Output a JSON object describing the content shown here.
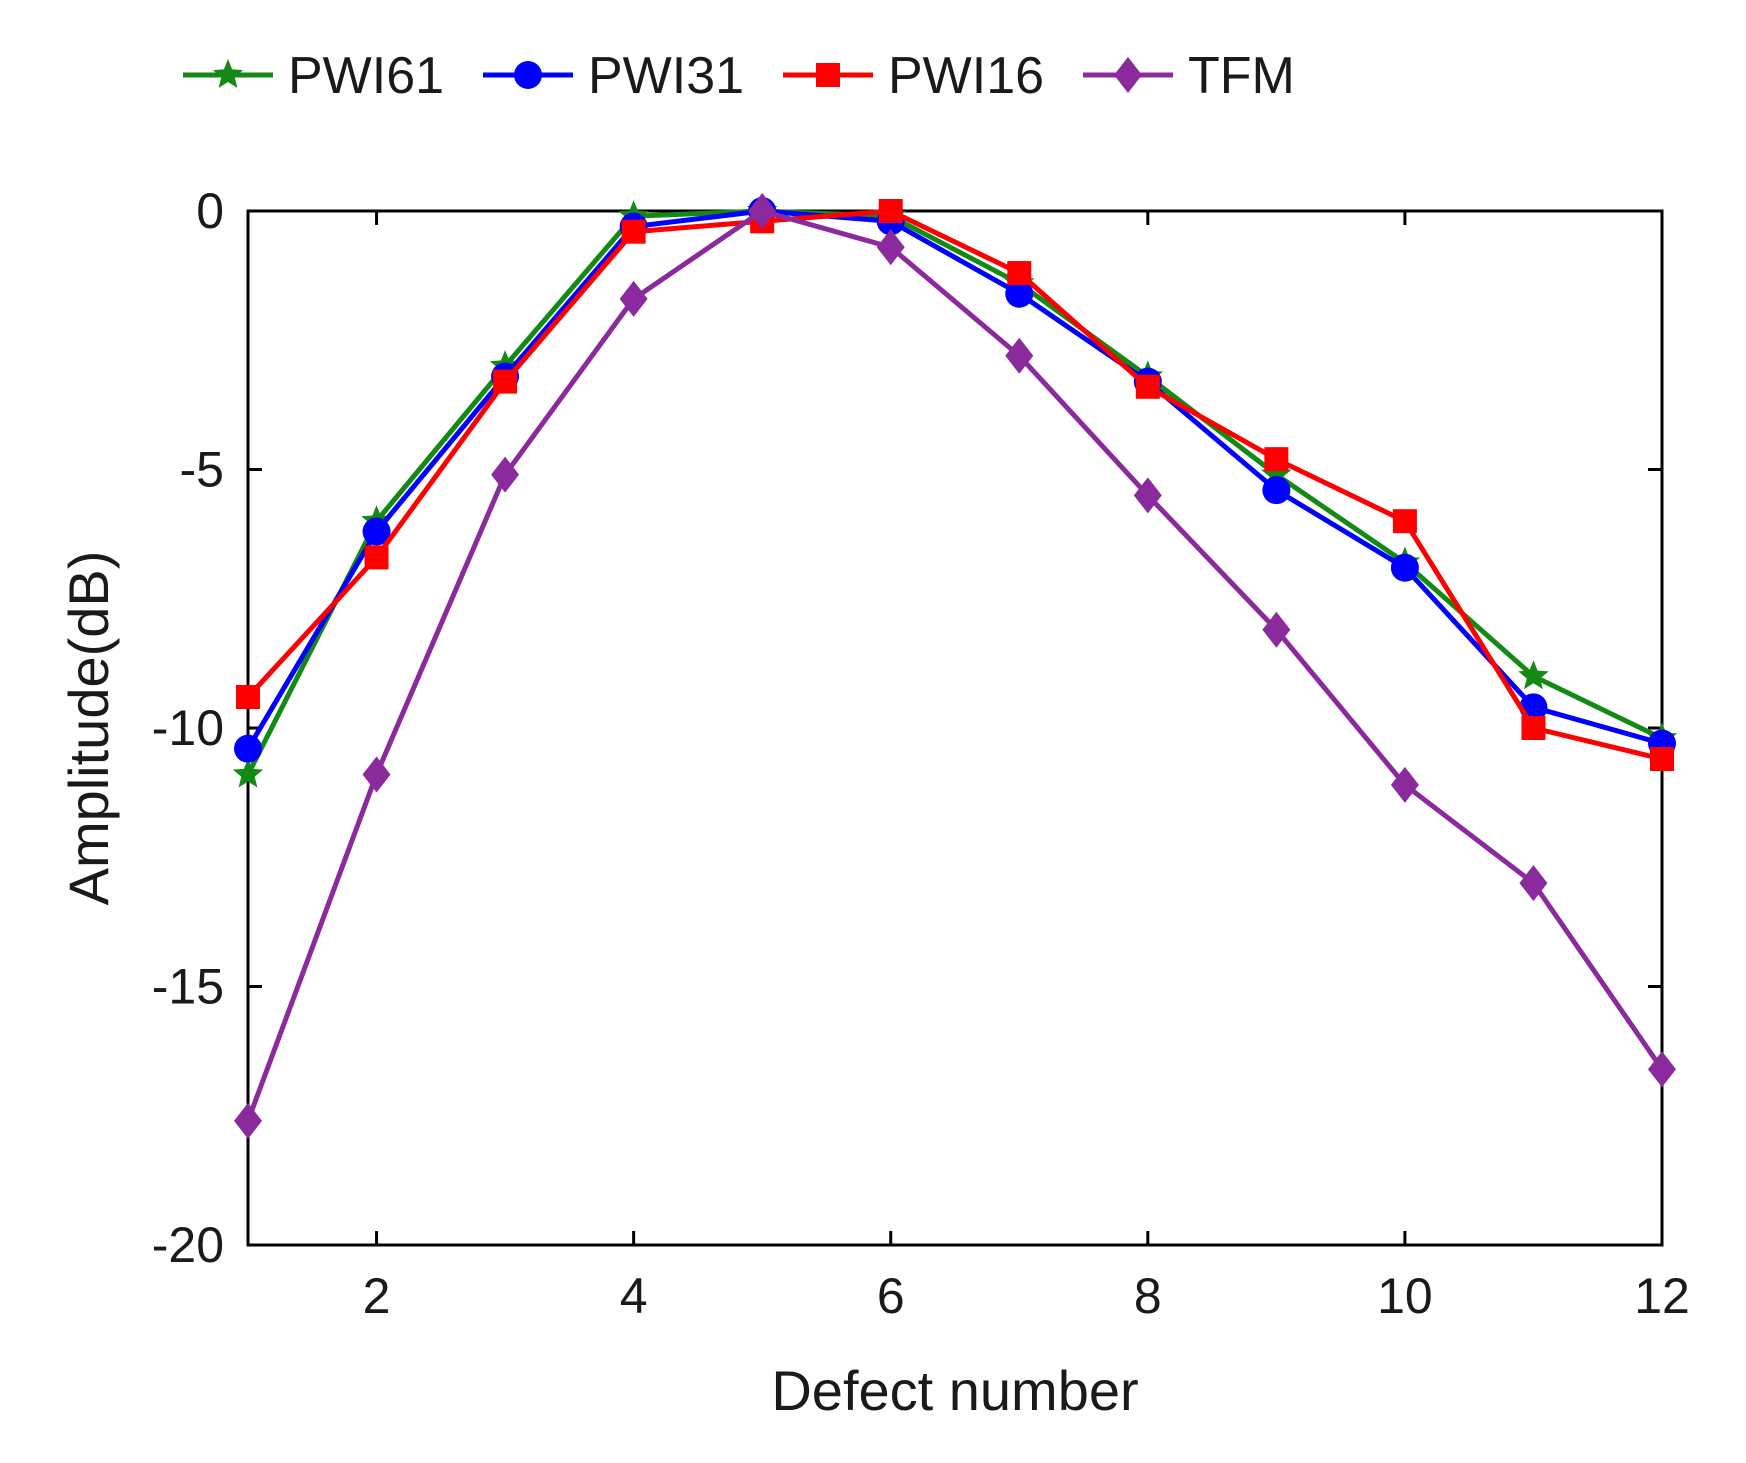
{
  "chart_data": {
    "type": "line",
    "title": "",
    "xlabel": "Defect number",
    "ylabel": "Amplitude(dB)",
    "xlim": [
      1,
      12
    ],
    "ylim": [
      -20,
      0
    ],
    "xticks": [
      2,
      4,
      6,
      8,
      10,
      12
    ],
    "yticks": [
      0,
      -5,
      -10,
      -15,
      -20
    ],
    "grid": false,
    "legend_position": "top, horizontal, above plot",
    "x": [
      1,
      2,
      3,
      4,
      5,
      6,
      7,
      8,
      9,
      10,
      11,
      12
    ],
    "series": [
      {
        "name": "PWI61",
        "color": "#138a13",
        "marker": "star",
        "values": [
          -10.9,
          -6.0,
          -3.0,
          -0.1,
          0.0,
          -0.1,
          -1.4,
          -3.2,
          -5.1,
          -6.8,
          -9.0,
          -10.2
        ]
      },
      {
        "name": "PWI31",
        "color": "#0000ff",
        "marker": "circle",
        "values": [
          -10.4,
          -6.2,
          -3.2,
          -0.3,
          0.0,
          -0.2,
          -1.6,
          -3.3,
          -5.4,
          -6.9,
          -9.6,
          -10.3
        ]
      },
      {
        "name": "PWI16",
        "color": "#ff0000",
        "marker": "square",
        "values": [
          -9.4,
          -6.7,
          -3.3,
          -0.4,
          -0.2,
          0.0,
          -1.2,
          -3.4,
          -4.8,
          -6.0,
          -10.0,
          -10.6
        ]
      },
      {
        "name": "TFM",
        "color": "#8b2a9c",
        "marker": "diamond",
        "values": [
          -17.6,
          -10.9,
          -5.1,
          -1.7,
          0.0,
          -0.7,
          -2.8,
          -5.5,
          -8.1,
          -11.1,
          -13.0,
          -16.6
        ]
      }
    ]
  }
}
